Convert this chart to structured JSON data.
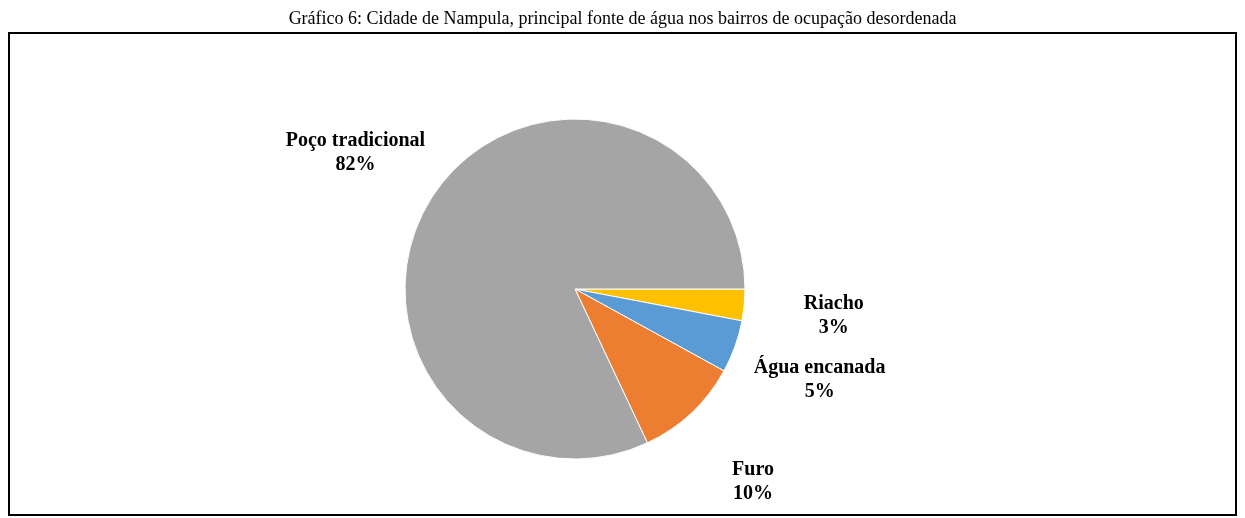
{
  "chart_data": {
    "type": "pie",
    "title": "Gráfico 6: Cidade de Nampula, principal fonte de água nos bairros de ocupação desordenada",
    "categories": [
      "Riacho",
      "Água encanada",
      "Furo",
      "Poço tradicional"
    ],
    "values": [
      3,
      5,
      10,
      82
    ],
    "colors": [
      "#ffc000",
      "#5b9bd5",
      "#ed7d31",
      "#a5a5a5"
    ],
    "value_labels": [
      "3%",
      "5%",
      "10%",
      "82%"
    ],
    "legend": false
  }
}
